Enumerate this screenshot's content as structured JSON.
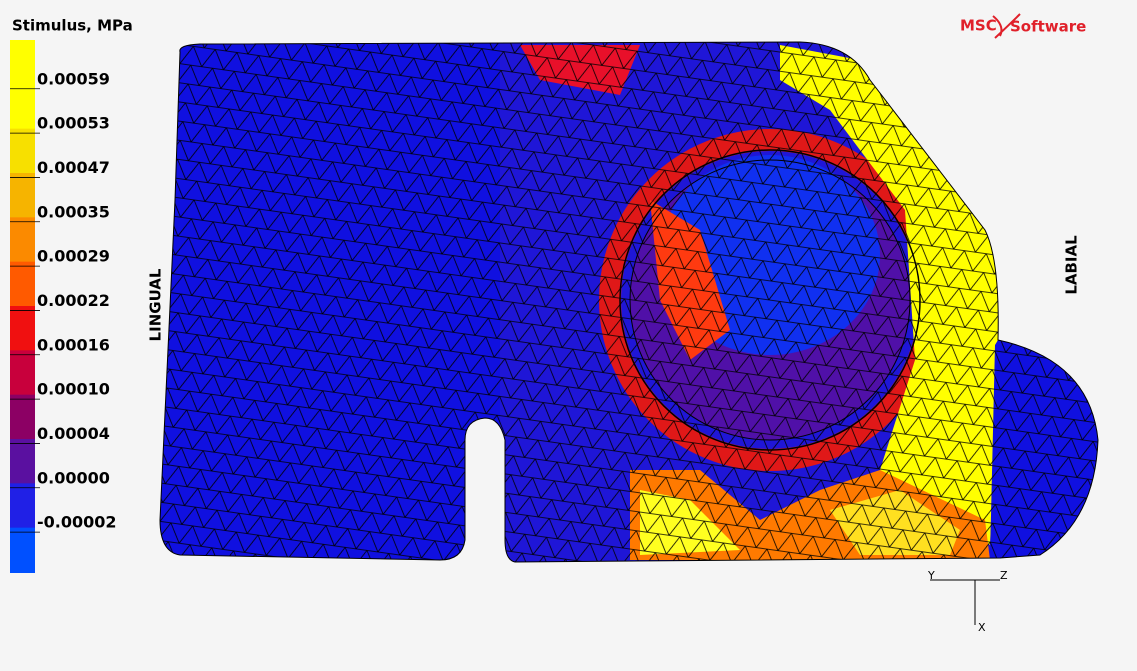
{
  "legend": {
    "title": "Stimulus, MPa",
    "entries": [
      {
        "label": "0.00059",
        "color": "#ffff00"
      },
      {
        "label": "0.00053",
        "color": "#f7e000"
      },
      {
        "label": "0.00047",
        "color": "#f6b400"
      },
      {
        "label": "0.00035",
        "color": "#fb8a00"
      },
      {
        "label": "0.00029",
        "color": "#ff5a00"
      },
      {
        "label": "0.00022",
        "color": "#f01010"
      },
      {
        "label": "0.00016",
        "color": "#c8003c"
      },
      {
        "label": "0.00010",
        "color": "#8c0064"
      },
      {
        "label": "0.00004",
        "color": "#5a10a0"
      },
      {
        "label": "0.00000",
        "color": "#2020e6"
      },
      {
        "label": "-0.00002",
        "color": "#0050ff"
      }
    ],
    "top_color": "#ffff00"
  },
  "labels": {
    "left": "LINGUAL",
    "right": "LABIAL"
  },
  "logo": {
    "brand": "MSC",
    "product": "Software"
  },
  "triad": {
    "y": "Y",
    "z": "Z",
    "x": "X"
  }
}
